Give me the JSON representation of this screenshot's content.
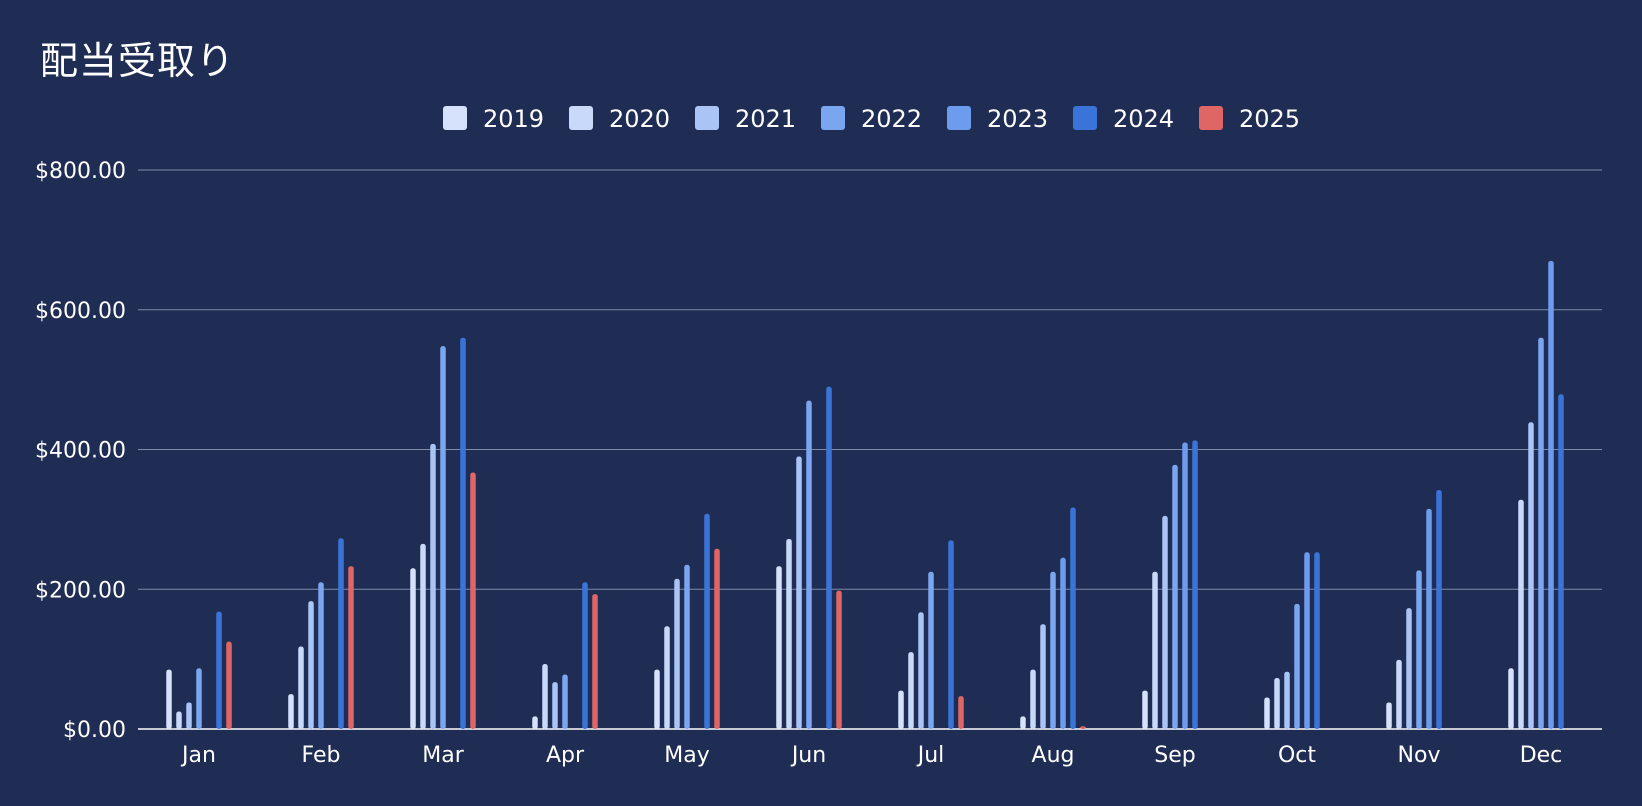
{
  "chart_data": {
    "type": "bar",
    "title": "配当受取り",
    "xlabel": "",
    "ylabel": "",
    "categories": [
      "Jan",
      "Feb",
      "Mar",
      "Apr",
      "May",
      "Jun",
      "Jul",
      "Aug",
      "Sep",
      "Oct",
      "Nov",
      "Dec"
    ],
    "ylim": [
      0,
      800
    ],
    "yticks": [
      "$0.00",
      "$200.00",
      "$400.00",
      "$600.00",
      "$800.00"
    ],
    "ytick_values": [
      0,
      200,
      400,
      600,
      800
    ],
    "grid": true,
    "legend_position": "top-center",
    "series": [
      {
        "name": "2019",
        "color": "#d6e2fb",
        "values": [
          85,
          50,
          230,
          18,
          85,
          233,
          55,
          18,
          55,
          45,
          38,
          87
        ]
      },
      {
        "name": "2020",
        "color": "#c9d9fa",
        "values": [
          25,
          118,
          265,
          93,
          147,
          272,
          110,
          85,
          225,
          73,
          99,
          328
        ]
      },
      {
        "name": "2021",
        "color": "#a9c4f5",
        "values": [
          38,
          183,
          408,
          67,
          215,
          390,
          167,
          150,
          305,
          82,
          173,
          439
        ]
      },
      {
        "name": "2022",
        "color": "#7aa5ef",
        "values": [
          87,
          210,
          548,
          78,
          235,
          470,
          225,
          225,
          378,
          179,
          227,
          560
        ]
      },
      {
        "name": "2023",
        "color": "#6d9cee",
        "values": [
          null,
          null,
          null,
          null,
          null,
          null,
          null,
          245,
          410,
          253,
          315,
          670
        ]
      },
      {
        "name": "2024",
        "color": "#3b74d8",
        "values": [
          168,
          273,
          560,
          210,
          308,
          490,
          270,
          317,
          413,
          253,
          342,
          479
        ]
      },
      {
        "name": "2025",
        "color": "#e06666",
        "values": [
          125,
          233,
          367,
          193,
          258,
          198,
          47,
          4,
          null,
          null,
          null,
          null
        ]
      }
    ]
  }
}
